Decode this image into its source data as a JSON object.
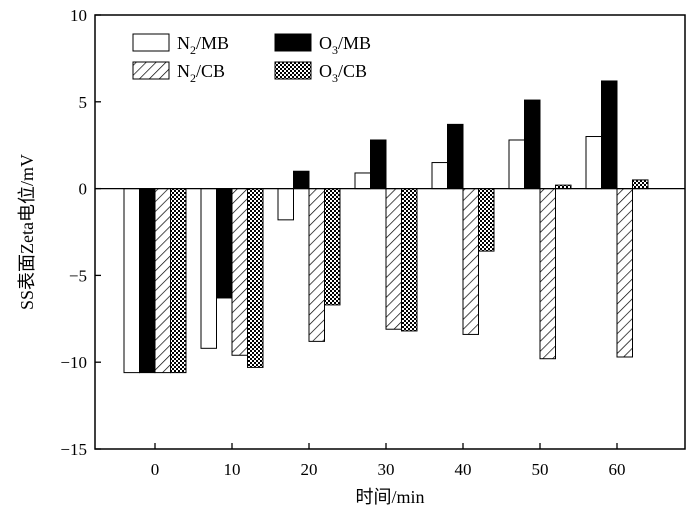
{
  "chart_data": {
    "type": "bar",
    "xlabel": "时间/min",
    "ylabel": "SS表面Zeta电位/mV",
    "categories": [
      "0",
      "10",
      "20",
      "30",
      "40",
      "50",
      "60"
    ],
    "ylim": [
      -15,
      10
    ],
    "yticks": [
      -15,
      -10,
      -5,
      0,
      5,
      10
    ],
    "ytick_labels": [
      "−15",
      "−10",
      "−5",
      "0",
      "5",
      "10"
    ],
    "series": [
      {
        "name": "N₂/MB",
        "name_main": "N",
        "name_sub": "2",
        "name_tail": "/MB",
        "fill": "open",
        "values": [
          -10.6,
          -9.2,
          -1.8,
          0.9,
          1.5,
          2.8,
          3.0
        ]
      },
      {
        "name": "O₃/MB",
        "name_main": "O",
        "name_sub": "3",
        "name_tail": "/MB",
        "fill": "solid",
        "values": [
          -10.6,
          -6.3,
          1.0,
          2.8,
          3.7,
          5.1,
          6.2
        ]
      },
      {
        "name": "N₂/CB",
        "name_main": "N",
        "name_sub": "2",
        "name_tail": "/CB",
        "fill": "hatched",
        "values": [
          -10.6,
          -9.6,
          -8.8,
          -8.1,
          -8.4,
          -9.8,
          -9.7
        ]
      },
      {
        "name": "O₃/CB",
        "name_main": "O",
        "name_sub": "3",
        "name_tail": "/CB",
        "fill": "crosshatched",
        "values": [
          -10.6,
          -10.3,
          -6.7,
          -8.2,
          -3.6,
          0.2,
          0.5
        ]
      }
    ],
    "legend_position": "top-left",
    "grid": false
  }
}
